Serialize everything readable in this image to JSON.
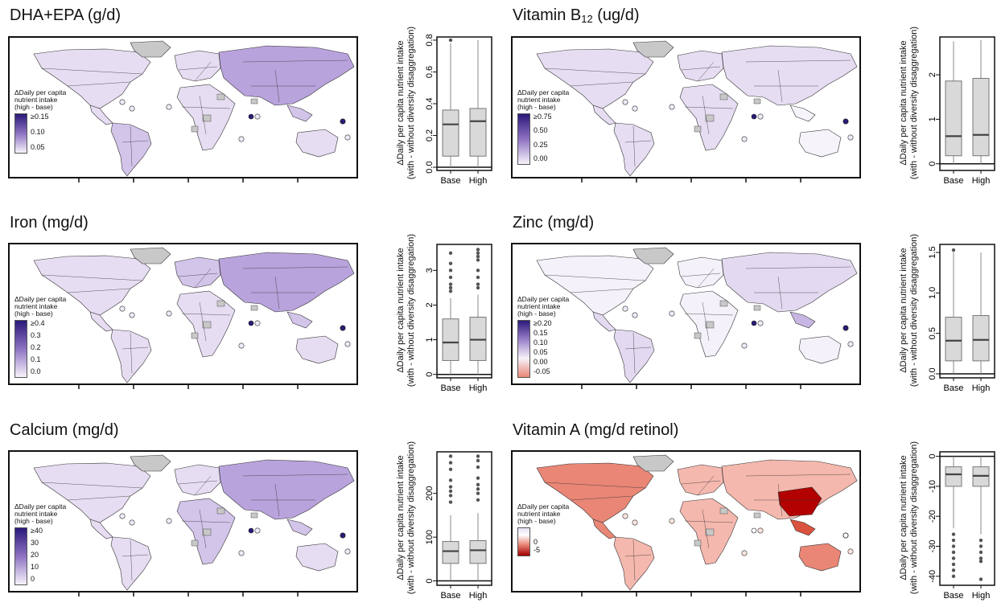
{
  "colors": {
    "land_low": "#f4f1fa",
    "land_high": "#5b3fa6",
    "land_neg": "#b30000",
    "grey": "#c8c8c8",
    "border": "#333333"
  },
  "box_ylabel": [
    "ΔDaily per capita nutrient intake",
    "(with - without diversity disaggregation)"
  ],
  "chart_data": [
    {
      "type": "box",
      "title": "DHA+EPA (g/d)",
      "legend_title": [
        "ΔDaily per capita",
        "nutrient intake",
        "(high - base)"
      ],
      "legend_ticks": [
        "≥0.15",
        "0.10",
        "0.05"
      ],
      "legend_scale": "purple",
      "categories": [
        "Base",
        "High"
      ],
      "ylim": [
        -0.02,
        0.82
      ],
      "yticks": [
        "0.0",
        "0.2",
        "0.4",
        "0.6",
        "0.8"
      ],
      "ytick_values": [
        0,
        0.2,
        0.4,
        0.6,
        0.8
      ],
      "boxes": [
        {
          "whisker_low": 0.0,
          "q1": 0.07,
          "median": 0.27,
          "q3": 0.36,
          "whisker_high": 0.78,
          "outliers": [
            0.8
          ]
        },
        {
          "whisker_low": 0.0,
          "q1": 0.07,
          "median": 0.29,
          "q3": 0.37,
          "whisker_high": 0.8,
          "outliers": []
        }
      ],
      "zero_line": 0
    },
    {
      "type": "box",
      "title": "Vitamin B",
      "title_sub": "12",
      "title_unit": " (ug/d)",
      "legend_title": [
        "ΔDaily per capita",
        "nutrient intake",
        "(high - base)"
      ],
      "legend_ticks": [
        "≥0.75",
        "0.50",
        "0.25",
        "0.00"
      ],
      "legend_scale": "purple",
      "categories": [
        "Base",
        "High"
      ],
      "ylim": [
        -0.15,
        2.85
      ],
      "yticks": [
        "0",
        "1",
        "2"
      ],
      "ytick_values": [
        0,
        1,
        2
      ],
      "boxes": [
        {
          "whisker_low": 0.0,
          "q1": 0.18,
          "median": 0.62,
          "q3": 1.86,
          "whisker_high": 2.75,
          "outliers": []
        },
        {
          "whisker_low": 0.0,
          "q1": 0.18,
          "median": 0.65,
          "q3": 1.92,
          "whisker_high": 2.78,
          "outliers": []
        }
      ],
      "zero_line": 0
    },
    {
      "type": "box",
      "title": "Iron (mg/d)",
      "legend_title": [
        "ΔDaily per capita",
        "nutrient intake",
        "(high - base)"
      ],
      "legend_ticks": [
        "≥0.4",
        "0.3",
        "0.2",
        "0.1",
        "0.0"
      ],
      "legend_scale": "purple",
      "categories": [
        "Base",
        "High"
      ],
      "ylim": [
        -0.1,
        3.75
      ],
      "yticks": [
        "0",
        "1",
        "2",
        "3"
      ],
      "ytick_values": [
        0,
        1,
        2,
        3
      ],
      "boxes": [
        {
          "whisker_low": 0.0,
          "q1": 0.4,
          "median": 0.92,
          "q3": 1.6,
          "whisker_high": 2.2,
          "outliers": [
            2.4,
            2.5,
            2.6,
            2.8,
            3.0,
            3.2,
            3.5
          ]
        },
        {
          "whisker_low": 0.0,
          "q1": 0.4,
          "median": 1.0,
          "q3": 1.65,
          "whisker_high": 2.3,
          "outliers": [
            2.5,
            2.6,
            2.8,
            3.0,
            3.3,
            3.4,
            3.5,
            3.6
          ]
        }
      ],
      "zero_line": 0
    },
    {
      "type": "box",
      "title": "Zinc (mg/d)",
      "legend_title": [
        "ΔDaily per capita",
        "nutrient intake",
        "(high - base)"
      ],
      "legend_ticks": [
        "≥0.20",
        "0.15",
        "0.10",
        "0.05",
        "0.00",
        "-0.05"
      ],
      "legend_scale": "diverging_small",
      "categories": [
        "Base",
        "High"
      ],
      "ylim": [
        -0.05,
        1.6
      ],
      "yticks": [
        "0.0",
        "0.5",
        "1.0",
        "1.5"
      ],
      "ytick_values": [
        0,
        0.5,
        1.0,
        1.5
      ],
      "boxes": [
        {
          "whisker_low": 0.0,
          "q1": 0.16,
          "median": 0.41,
          "q3": 0.7,
          "whisker_high": 1.5,
          "outliers": [
            1.53
          ]
        },
        {
          "whisker_low": 0.0,
          "q1": 0.16,
          "median": 0.42,
          "q3": 0.72,
          "whisker_high": 1.5,
          "outliers": []
        }
      ],
      "zero_line": 0
    },
    {
      "type": "box",
      "title": "Calcium (mg/d)",
      "legend_title": [
        "ΔDaily per capita",
        "nutrient intake",
        "(high - base)"
      ],
      "legend_ticks": [
        "≥40",
        "30",
        "20",
        "10",
        "0"
      ],
      "legend_scale": "purple",
      "categories": [
        "Base",
        "High"
      ],
      "ylim": [
        -10,
        295
      ],
      "yticks": [
        "0",
        "100",
        "200"
      ],
      "ytick_values": [
        0,
        100,
        200
      ],
      "boxes": [
        {
          "whisker_low": 0,
          "q1": 40,
          "median": 68,
          "q3": 90,
          "whisker_high": 150,
          "outliers": [
            180,
            195,
            205,
            215,
            230,
            255,
            270,
            285
          ]
        },
        {
          "whisker_low": 0,
          "q1": 40,
          "median": 70,
          "q3": 92,
          "whisker_high": 155,
          "outliers": [
            185,
            200,
            210,
            220,
            235,
            260,
            275,
            285
          ]
        }
      ],
      "zero_line": 0
    },
    {
      "type": "box",
      "title": "Vitamin A (mg/d retinol)",
      "legend_title": [
        "ΔDaily per capita",
        "nutrient intake",
        "(high - base)"
      ],
      "legend_ticks": [
        "0",
        "-5"
      ],
      "legend_scale": "red",
      "categories": [
        "Base",
        "High"
      ],
      "ylim": [
        -43,
        1.5
      ],
      "yticks": [
        "0",
        "-10",
        "-20",
        "-30",
        "-40"
      ],
      "ytick_values": [
        0,
        -10,
        -20,
        -30,
        -40
      ],
      "boxes": [
        {
          "whisker_low": -24,
          "q1": -10,
          "median": -6,
          "q3": -3.5,
          "whisker_high": 0,
          "outliers": [
            -26,
            -28,
            -30,
            -32,
            -34,
            -36,
            -38,
            -40
          ]
        },
        {
          "whisker_low": -26,
          "q1": -10,
          "median": -6.5,
          "q3": -3.5,
          "whisker_high": 0,
          "outliers": [
            -28,
            -30,
            -32,
            -34,
            -35,
            -41
          ]
        }
      ],
      "zero_line": 0
    }
  ]
}
